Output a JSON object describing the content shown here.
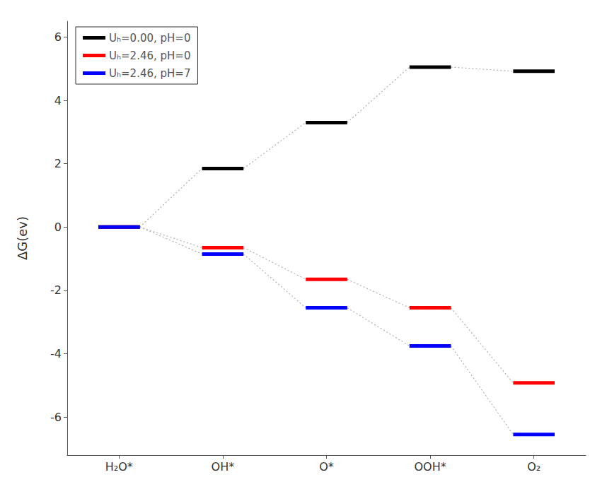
{
  "chart_data": {
    "type": "level",
    "categories": [
      "H₂O*",
      "OH*",
      "O*",
      "OOH*",
      "O₂"
    ],
    "series": [
      {
        "name": "Uₕ=0.00, pH=0",
        "color": "black",
        "values": [
          0.0,
          1.85,
          3.3,
          5.05,
          4.92
        ]
      },
      {
        "name": "Uₕ=2.46, pH=0",
        "color": "red",
        "values": [
          0.0,
          -0.65,
          -1.65,
          -2.55,
          -4.92
        ]
      },
      {
        "name": "Uₕ=2.46, pH=7",
        "color": "blue",
        "values": [
          0.0,
          -0.85,
          -2.55,
          -3.75,
          -6.55
        ]
      }
    ],
    "ylabel": "ΔG(ev)",
    "ylim": [
      -7.2,
      6.5
    ],
    "yticks": [
      -6,
      -4,
      -2,
      0,
      2,
      4,
      6
    ],
    "grid": false,
    "legend": "upper left"
  }
}
